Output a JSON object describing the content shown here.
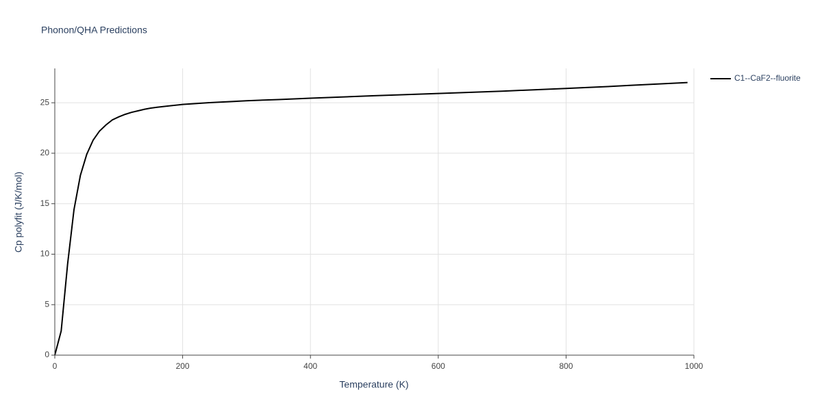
{
  "chart_data": {
    "type": "line",
    "title": "Phonon/QHA Predictions",
    "x_label": "Temperature (K)",
    "y_label": "Cp polyfit (J/K/mol)",
    "x": [
      0,
      10,
      20,
      30,
      40,
      50,
      60,
      70,
      80,
      90,
      100,
      110,
      120,
      130,
      140,
      150,
      160,
      180,
      200,
      240,
      300,
      350,
      400,
      500,
      600,
      700,
      800,
      870,
      900,
      990
    ],
    "series": [
      {
        "name": "C1--CaF2--fluorite",
        "color": "#000000",
        "values": [
          0,
          2.4,
          9.0,
          14.4,
          17.8,
          19.9,
          21.3,
          22.2,
          22.8,
          23.3,
          23.6,
          23.85,
          24.05,
          24.2,
          24.35,
          24.47,
          24.55,
          24.7,
          24.83,
          25.0,
          25.2,
          25.32,
          25.45,
          25.7,
          25.92,
          26.15,
          26.42,
          26.62,
          26.72,
          27.0
        ]
      }
    ],
    "xlim": [
      0,
      1000
    ],
    "xticks": [
      0,
      200,
      400,
      600,
      800,
      1000
    ],
    "ylim": [
      0,
      28.4
    ],
    "yticks": [
      0,
      5,
      10,
      15,
      20,
      25
    ],
    "grid": true
  }
}
